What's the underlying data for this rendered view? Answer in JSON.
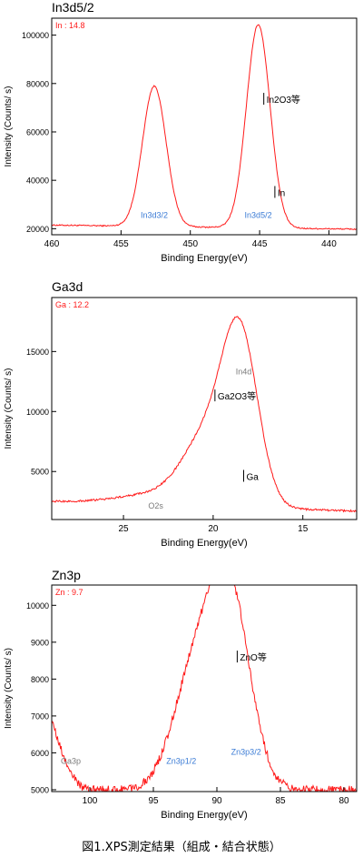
{
  "caption": "図1.XPS測定結果（組成・結合状態）",
  "colors": {
    "curve": "#ff1a1a",
    "peak_label": "#3a7bd5",
    "marker": "#000000",
    "minor_label": "#7a7a7a",
    "frame": "#000000"
  },
  "chart_data": [
    {
      "type": "line",
      "title": "In3d5/2",
      "xlabel": "Binding Energy(eV)",
      "ylabel": "Intensity (Counts/ s)",
      "x_reversed": true,
      "xlim": [
        460,
        438
      ],
      "ylim": [
        17500,
        107000
      ],
      "xticks": [
        460,
        455,
        450,
        445,
        440
      ],
      "yticks": [
        20000,
        40000,
        60000,
        80000,
        100000
      ],
      "composition_label": "In : 14.8",
      "peaks": [
        {
          "center": 452.6,
          "height": 58000,
          "width": 0.85
        },
        {
          "center": 445.1,
          "height": 84000,
          "width": 0.85
        }
      ],
      "baseline": {
        "left": 21500,
        "right": 19800
      },
      "noise": 250,
      "annotations": [
        {
          "text": "In3d3/2",
          "x": 452.6,
          "y": 24500,
          "kind": "peak"
        },
        {
          "text": "In3d5/2",
          "x": 445.1,
          "y": 24500,
          "kind": "peak"
        },
        {
          "text": "In2O3等",
          "x": 444.7,
          "y": 72000,
          "kind": "marker"
        },
        {
          "text": "In",
          "x": 443.9,
          "y": 33500,
          "kind": "marker"
        }
      ]
    },
    {
      "type": "line",
      "title": "Ga3d",
      "xlabel": "Binding Energy(eV)",
      "ylabel": "Intensity (Counts/ s)",
      "x_reversed": true,
      "xlim": [
        29,
        12
      ],
      "ylim": [
        1000,
        19500
      ],
      "xticks": [
        25,
        20,
        15
      ],
      "yticks": [
        5000,
        10000,
        15000
      ],
      "composition_label": "Ga : 12.2",
      "peaks": [
        {
          "center": 18.5,
          "height": 13800,
          "width": 1.0
        },
        {
          "center": 20.4,
          "height": 5200,
          "width": 1.3
        },
        {
          "center": 23.0,
          "height": 900,
          "width": 2.2
        }
      ],
      "baseline": {
        "left": 2500,
        "right": 1700
      },
      "noise": 80,
      "annotations": [
        {
          "text": "In4d",
          "x": 18.3,
          "y": 13100,
          "kind": "minor"
        },
        {
          "text": "Ga2O3等",
          "x": 19.9,
          "y": 11000,
          "kind": "marker"
        },
        {
          "text": "Ga",
          "x": 18.3,
          "y": 4300,
          "kind": "marker"
        },
        {
          "text": "O2s",
          "x": 23.2,
          "y": 1900,
          "kind": "minor"
        }
      ]
    },
    {
      "type": "line",
      "title": "Zn3p",
      "xlabel": "Binding Energy(eV)",
      "ylabel": "Intensity (Counts/ s)",
      "x_reversed": true,
      "xlim": [
        103,
        79
      ],
      "ylim": [
        4950,
        10550
      ],
      "xticks": [
        100,
        95,
        90,
        85,
        80
      ],
      "yticks": [
        5000,
        6000,
        7000,
        8000,
        9000,
        10000
      ],
      "composition_label": "Zn : 9.7",
      "peaks": [
        {
          "center": 89.0,
          "height": 5200,
          "width": 1.6
        },
        {
          "center": 91.8,
          "height": 3000,
          "width": 1.7
        }
      ],
      "baseline": {
        "left": 5000,
        "right": 5000
      },
      "extra_rise": {
        "start": 100.0,
        "end": 103,
        "amount": 1900
      },
      "noise": 110,
      "annotations": [
        {
          "text": "ZnO等",
          "x": 88.4,
          "y": 8500,
          "kind": "marker"
        },
        {
          "text": "Zn3p3/2",
          "x": 87.7,
          "y": 5950,
          "kind": "peak"
        },
        {
          "text": "Zn3p1/2",
          "x": 92.8,
          "y": 5700,
          "kind": "peak"
        },
        {
          "text": "Ga3p",
          "x": 101.5,
          "y": 5700,
          "kind": "minor"
        }
      ]
    }
  ]
}
